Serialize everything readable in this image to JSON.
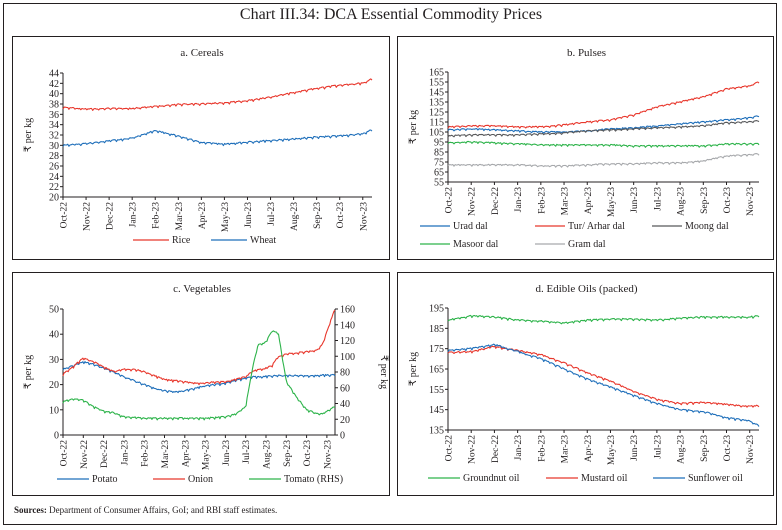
{
  "title": "Chart III.34: DCA Essential Commodity Prices",
  "sources_label": "Sources:",
  "sources_text": " Department of Consumer Affairs, GoI; and RBI staff estimates.",
  "chart_data": [
    {
      "id": "cereals",
      "type": "line",
      "title": "a. Cereals",
      "ylabel": "₹ per kg",
      "ylim": [
        20,
        44
      ],
      "yticks": [
        20,
        22,
        24,
        26,
        28,
        30,
        32,
        34,
        36,
        38,
        40,
        42,
        44
      ],
      "categories": [
        "Oct-22",
        "Nov-22",
        "Dec-22",
        "Jan-23",
        "Feb-23",
        "Mar-23",
        "Apr-23",
        "May-23",
        "Jun-23",
        "Jul-23",
        "Aug-23",
        "Sep-23",
        "Oct-23",
        "Nov-23"
      ],
      "x": [
        0,
        1,
        2,
        3,
        4,
        5,
        6,
        7,
        8,
        9,
        10,
        11,
        12,
        13,
        13.4
      ],
      "series": [
        {
          "name": "Rice",
          "color": "#e8372c",
          "values": [
            37.3,
            37.0,
            37.1,
            37.1,
            37.5,
            37.9,
            38.0,
            38.2,
            38.6,
            39.3,
            40.2,
            41.0,
            41.6,
            42.0,
            42.8
          ]
        },
        {
          "name": "Wheat",
          "color": "#1f6fba",
          "values": [
            30.0,
            30.3,
            30.8,
            31.4,
            32.8,
            31.8,
            30.5,
            30.2,
            30.6,
            30.9,
            31.2,
            31.6,
            31.8,
            32.2,
            33.0
          ]
        }
      ],
      "legend": "bottom"
    },
    {
      "id": "pulses",
      "type": "line",
      "title": "b. Pulses",
      "ylabel": "₹ per kg",
      "ylim": [
        55,
        165
      ],
      "yticks": [
        55,
        65,
        75,
        85,
        95,
        105,
        115,
        125,
        135,
        145,
        155,
        165
      ],
      "categories": [
        "Oct-22",
        "Nov-22",
        "Dec-22",
        "Jan-23",
        "Feb-23",
        "Mar-23",
        "Apr-23",
        "May-23",
        "Jun-23",
        "Jul-23",
        "Aug-23",
        "Sep-23",
        "Oct-23",
        "Nov-23"
      ],
      "x": [
        0,
        1,
        2,
        3,
        4,
        5,
        6,
        7,
        8,
        9,
        10,
        11,
        12,
        13,
        13.4
      ],
      "series": [
        {
          "name": "Urad dal",
          "color": "#1f6fba",
          "values": [
            107,
            108,
            107,
            106,
            105,
            105,
            106,
            108,
            109,
            111,
            113,
            115,
            117,
            119,
            121
          ]
        },
        {
          "name": "Tur/ Arhar dal",
          "color": "#e8372c",
          "values": [
            110,
            111,
            111,
            110,
            110,
            112,
            115,
            117,
            122,
            130,
            135,
            140,
            148,
            151,
            155
          ]
        },
        {
          "name": "Moong dal",
          "color": "#58595b",
          "values": [
            101,
            102,
            102,
            102,
            103,
            104,
            106,
            107,
            108,
            109,
            110,
            111,
            114,
            115,
            116
          ]
        },
        {
          "name": "Masoor dal",
          "color": "#2db34a",
          "values": [
            94,
            95,
            94,
            93,
            92,
            92,
            92,
            92,
            91,
            91,
            91,
            91,
            93,
            93,
            93
          ]
        },
        {
          "name": "Gram dal",
          "color": "#a7a9ac",
          "values": [
            72,
            72,
            72,
            72,
            71,
            71,
            72,
            73,
            73,
            74,
            74,
            76,
            81,
            82,
            83
          ]
        }
      ],
      "legend": "bottom"
    },
    {
      "id": "vegetables",
      "type": "line",
      "title": "c. Vegetables",
      "ylabel": "₹ per kg",
      "ylabel_right": "₹ per kg",
      "ylim": [
        0,
        50
      ],
      "yticks": [
        0,
        10,
        20,
        30,
        40,
        50
      ],
      "ylim_right": [
        0,
        160
      ],
      "yticks_right": [
        0,
        20,
        40,
        60,
        80,
        100,
        120,
        140,
        160
      ],
      "categories": [
        "Oct-22",
        "Nov-22",
        "Dec-22",
        "Jan-23",
        "Feb-23",
        "Mar-23",
        "Apr-23",
        "May-23",
        "Jun-23",
        "Jul-23",
        "Aug-23",
        "Sep-23",
        "Oct-23",
        "Nov-23"
      ],
      "x": [
        0,
        0.5,
        1,
        1.5,
        2,
        2.5,
        3,
        3.5,
        4,
        4.5,
        5,
        5.5,
        6,
        6.5,
        7,
        7.5,
        8,
        8.5,
        9,
        9.3,
        9.6,
        9.9,
        10,
        10.3,
        10.6,
        11,
        11.5,
        12,
        12.5,
        12.8,
        13,
        13.4
      ],
      "series": [
        {
          "name": "Potato",
          "color": "#1f6fba",
          "axis": "left",
          "values": [
            26,
            27.5,
            29,
            28,
            26.5,
            25,
            23,
            21.5,
            20,
            18.5,
            17.5,
            17,
            17.5,
            18.5,
            19.5,
            20,
            20.5,
            21.5,
            22.5,
            23,
            23,
            23,
            23.2,
            23.4,
            23.5,
            23.5,
            23.5,
            23.3,
            23.5,
            23.6,
            23.7,
            23.8
          ]
        },
        {
          "name": "Onion",
          "color": "#e8372c",
          "axis": "left",
          "values": [
            24,
            27,
            30.5,
            29,
            27,
            25,
            26,
            26,
            25,
            23.5,
            22,
            21.5,
            21,
            20.5,
            20.5,
            21,
            21,
            22,
            23,
            25,
            26,
            26,
            26.5,
            27.5,
            31,
            32,
            32.5,
            33,
            33.5,
            36,
            41,
            50
          ]
        },
        {
          "name": "Tomato (RHS)",
          "color": "#2db34a",
          "axis": "right",
          "values": [
            42,
            46,
            44,
            36,
            30,
            28,
            23,
            22,
            21,
            21,
            21,
            21,
            21,
            21,
            21,
            22,
            23,
            26,
            36,
            80,
            114,
            116,
            118,
            132,
            130,
            68,
            48,
            32,
            27,
            27,
            30,
            36
          ]
        }
      ],
      "legend": "bottom"
    },
    {
      "id": "edible-oils",
      "type": "line",
      "title": "d. Edible Oils (packed)",
      "ylabel": "₹ per kg",
      "ylim": [
        135,
        195
      ],
      "yticks": [
        135,
        145,
        155,
        165,
        175,
        185,
        195
      ],
      "categories": [
        "Oct-22",
        "Nov-22",
        "Dec-22",
        "Jan-23",
        "Feb-23",
        "Mar-23",
        "Apr-23",
        "May-23",
        "Jun-23",
        "Jul-23",
        "Aug-23",
        "Sep-23",
        "Oct-23",
        "Nov-23"
      ],
      "x": [
        0,
        1,
        2,
        3,
        4,
        5,
        6,
        7,
        8,
        9,
        10,
        11,
        12,
        13,
        13.4
      ],
      "series": [
        {
          "name": "Groundnut oil",
          "color": "#2db34a",
          "values": [
            189,
            191,
            190.5,
            189,
            188.5,
            187.5,
            189,
            189.5,
            189.5,
            189,
            190,
            190.5,
            190.5,
            190.5,
            191
          ]
        },
        {
          "name": "Mustard oil",
          "color": "#e8372c",
          "values": [
            173,
            173.5,
            176,
            174,
            172,
            168,
            163,
            159,
            154,
            150,
            148,
            148.5,
            147.5,
            146.5,
            147
          ]
        },
        {
          "name": "Sunflower oil",
          "color": "#1f6fba",
          "values": [
            174,
            175,
            177,
            173.5,
            170,
            165,
            160,
            156,
            152,
            148,
            145,
            144,
            141,
            139.5,
            137
          ]
        }
      ],
      "legend": "bottom"
    }
  ]
}
